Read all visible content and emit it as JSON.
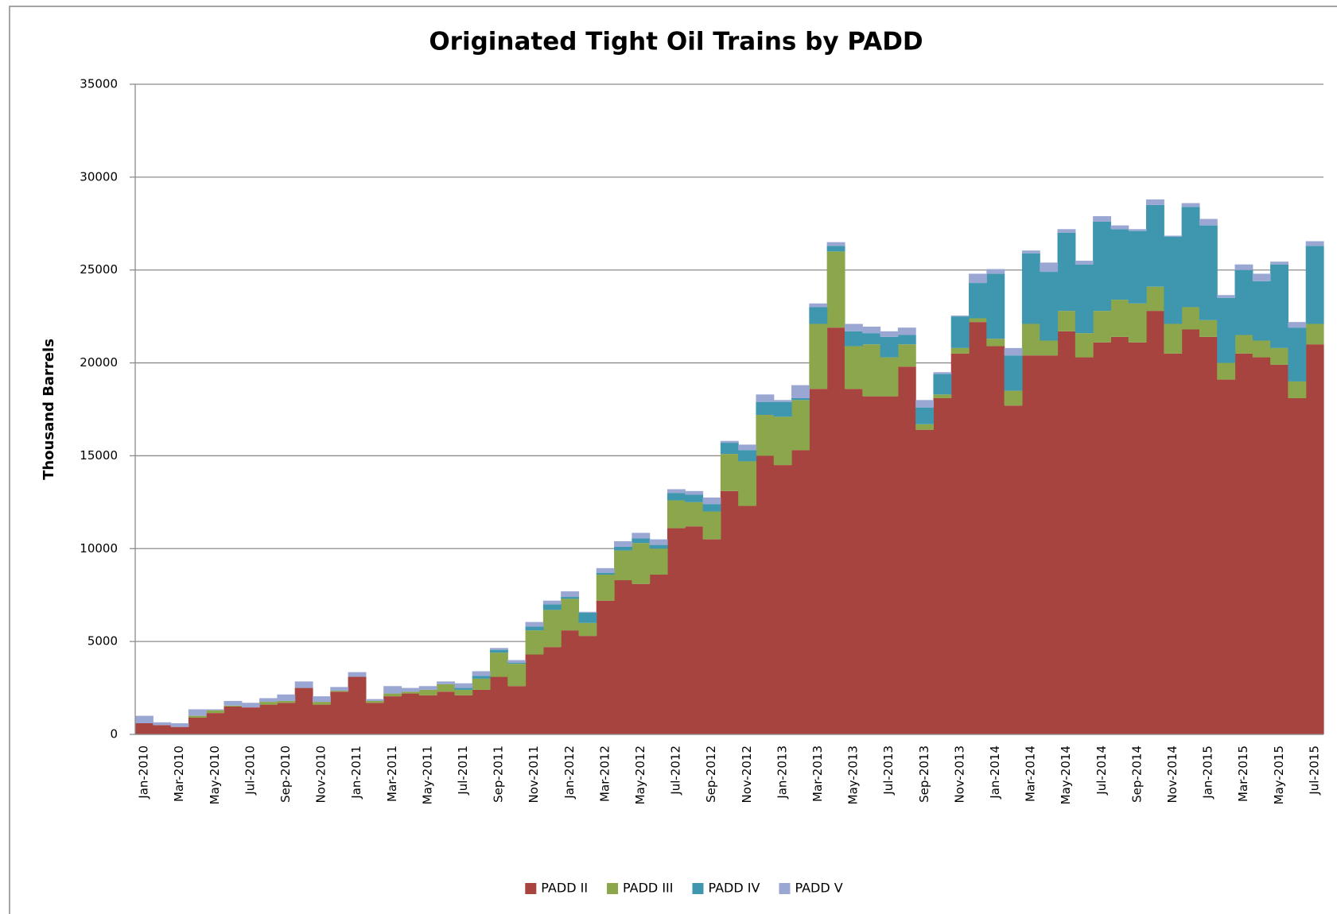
{
  "chart_data": {
    "type": "stacked_bar",
    "title": "Originated Tight Oil Trains by PADD",
    "y_label": "Thousand Barrels",
    "categories": [
      "Jan-2010",
      null,
      "Mar-2010",
      null,
      "May-2010",
      null,
      "Jul-2010",
      null,
      "Sep-2010",
      null,
      "Nov-2010",
      null,
      "Jan-2011",
      null,
      "Mar-2011",
      null,
      "May-2011",
      null,
      "Jul-2011",
      null,
      "Sep-2011",
      null,
      "Nov-2011",
      null,
      "Jan-2012",
      null,
      "Mar-2012",
      null,
      "May-2012",
      null,
      "Jul-2012",
      null,
      "Sep-2012",
      null,
      "Nov-2012",
      null,
      "Jan-2013",
      null,
      "Mar-2013",
      null,
      "May-2013",
      null,
      "Jul-2013",
      null,
      "Sep-2013",
      null,
      "Nov-2013",
      null,
      "Jan-2014",
      null,
      "Mar-2014",
      null,
      "May-2014",
      null,
      "Jul-2014",
      null,
      "Sep-2014",
      null,
      "Nov-2014",
      null,
      "Jan-2015",
      null,
      "Mar-2015",
      null,
      "May-2015",
      null,
      "Jul-2015"
    ],
    "series": [
      {
        "name": "PADD II",
        "color": "#a8443f",
        "values": [
          600,
          500,
          400,
          900,
          1150,
          1500,
          1450,
          1600,
          1700,
          2500,
          1600,
          2300,
          3100,
          1700,
          2050,
          2200,
          2100,
          2300,
          2100,
          2400,
          3100,
          2600,
          4300,
          4700,
          5600,
          5300,
          7200,
          8300,
          8100,
          8600,
          11100,
          11200,
          10500,
          13100,
          12300,
          15000,
          14500,
          15300,
          18600,
          21900,
          18600,
          18200,
          18200,
          19800,
          16400,
          18100,
          20500,
          22200,
          20900,
          17700,
          20400,
          20400,
          21700,
          20300,
          21100,
          21400,
          21100,
          22800,
          20500,
          21800,
          21400,
          19100,
          20500,
          20300,
          19900,
          18100,
          21000
        ]
      },
      {
        "name": "PADD III",
        "color": "#8ba64b",
        "values": [
          0,
          0,
          0,
          100,
          150,
          50,
          0,
          150,
          100,
          0,
          150,
          50,
          0,
          100,
          150,
          100,
          300,
          400,
          300,
          600,
          1300,
          1200,
          1300,
          2000,
          1700,
          700,
          1400,
          1600,
          2200,
          1400,
          1500,
          1300,
          1500,
          2000,
          2400,
          2200,
          2600,
          2700,
          3500,
          4100,
          2300,
          2800,
          2100,
          1200,
          300,
          200,
          300,
          200,
          400,
          800,
          1700,
          800,
          1100,
          1300,
          1700,
          2000,
          2100,
          1300,
          1600,
          1200,
          900,
          900,
          1000,
          900,
          900,
          900,
          1100
        ]
      },
      {
        "name": "PADD IV",
        "color": "#3e97ae",
        "values": [
          0,
          0,
          0,
          0,
          0,
          0,
          0,
          0,
          0,
          0,
          0,
          0,
          0,
          0,
          0,
          0,
          0,
          0,
          100,
          150,
          150,
          50,
          200,
          300,
          100,
          550,
          100,
          200,
          250,
          200,
          400,
          400,
          400,
          600,
          600,
          700,
          800,
          100,
          900,
          300,
          800,
          600,
          1100,
          500,
          900,
          1100,
          1700,
          1900,
          3500,
          1900,
          3800,
          3700,
          4200,
          3700,
          4800,
          3800,
          3900,
          4400,
          4700,
          5400,
          5100,
          3500,
          3500,
          3200,
          4500,
          2900,
          4200
        ]
      },
      {
        "name": "PADD V",
        "color": "#9aa7d3",
        "values": [
          400,
          150,
          200,
          350,
          50,
          250,
          250,
          200,
          350,
          350,
          300,
          200,
          250,
          100,
          400,
          200,
          200,
          150,
          250,
          250,
          100,
          150,
          250,
          200,
          300,
          50,
          250,
          300,
          300,
          300,
          200,
          200,
          350,
          100,
          300,
          400,
          100,
          700,
          200,
          200,
          400,
          350,
          300,
          400,
          400,
          100,
          50,
          500,
          250,
          400,
          150,
          500,
          200,
          200,
          300,
          200,
          100,
          300,
          50,
          200,
          350,
          150,
          300,
          400,
          150,
          300,
          250
        ]
      }
    ],
    "ylim": [
      0,
      35000
    ],
    "yticks": [
      0,
      5000,
      10000,
      15000,
      20000,
      25000,
      30000,
      35000
    ],
    "grid": true,
    "legend": "bottom"
  }
}
